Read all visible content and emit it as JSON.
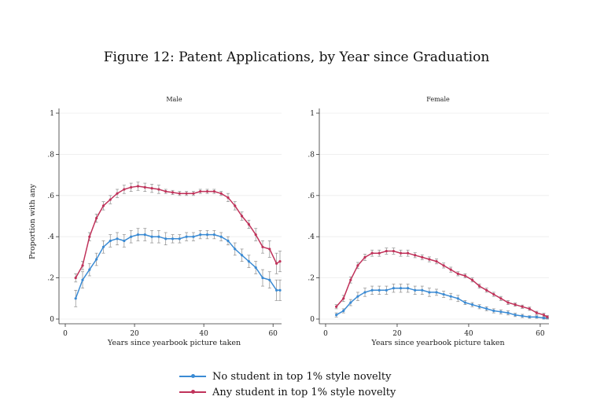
{
  "figure_title": "Figure 12: Patent Applications, by Year since Graduation",
  "colors": {
    "blue": "#3b8bd4",
    "red": "#c0325a",
    "ci": "#8c8c8c",
    "grid": "#ececec",
    "axis": "#333333"
  },
  "legend": {
    "items": [
      {
        "label": "No student in top 1% style novelty",
        "color": "#3b8bd4"
      },
      {
        "label": "Any student in top 1% style novelty",
        "color": "#c0325a"
      }
    ]
  },
  "chart_data": [
    {
      "type": "line",
      "title": "Male",
      "xlabel": "Years since yearbook picture taken",
      "ylabel": "Proportion with any",
      "xlim": [
        0,
        62
      ],
      "ylim": [
        0,
        1
      ],
      "xticks": [
        0,
        20,
        40,
        60
      ],
      "yticks": [
        0,
        0.2,
        0.4,
        0.6,
        0.8,
        1
      ],
      "ytick_labels": [
        "0",
        ".2",
        ".4",
        ".6",
        ".8",
        "1"
      ],
      "grid": true,
      "legend": "bottom",
      "series": [
        {
          "name": "No student in top 1% style novelty",
          "color": "#3b8bd4",
          "error_bars": true,
          "x": [
            3,
            5,
            7,
            9,
            11,
            13,
            15,
            17,
            19,
            21,
            23,
            25,
            27,
            29,
            31,
            33,
            35,
            37,
            39,
            41,
            43,
            45,
            47,
            49,
            51,
            53,
            55,
            57,
            59,
            61,
            62
          ],
          "y": [
            0.1,
            0.19,
            0.24,
            0.29,
            0.35,
            0.38,
            0.39,
            0.38,
            0.4,
            0.41,
            0.41,
            0.4,
            0.4,
            0.39,
            0.39,
            0.39,
            0.4,
            0.4,
            0.41,
            0.41,
            0.41,
            0.4,
            0.38,
            0.34,
            0.31,
            0.28,
            0.25,
            0.2,
            0.19,
            0.14,
            0.14
          ],
          "err": [
            0.04,
            0.04,
            0.03,
            0.03,
            0.03,
            0.03,
            0.03,
            0.03,
            0.03,
            0.03,
            0.03,
            0.03,
            0.03,
            0.03,
            0.02,
            0.02,
            0.02,
            0.02,
            0.02,
            0.02,
            0.02,
            0.02,
            0.02,
            0.03,
            0.03,
            0.03,
            0.03,
            0.04,
            0.04,
            0.05,
            0.05
          ]
        },
        {
          "name": "Any student in top 1% style novelty",
          "color": "#c0325a",
          "error_bars": true,
          "x": [
            3,
            5,
            7,
            9,
            11,
            13,
            15,
            17,
            19,
            21,
            23,
            25,
            27,
            29,
            31,
            33,
            35,
            37,
            39,
            41,
            43,
            45,
            47,
            49,
            51,
            53,
            55,
            57,
            59,
            61,
            62
          ],
          "y": [
            0.2,
            0.26,
            0.4,
            0.49,
            0.55,
            0.58,
            0.61,
            0.63,
            0.64,
            0.645,
            0.64,
            0.635,
            0.63,
            0.62,
            0.615,
            0.61,
            0.61,
            0.61,
            0.62,
            0.62,
            0.62,
            0.61,
            0.59,
            0.55,
            0.5,
            0.46,
            0.41,
            0.35,
            0.34,
            0.27,
            0.28
          ],
          "err": [
            0.02,
            0.02,
            0.02,
            0.02,
            0.02,
            0.02,
            0.02,
            0.02,
            0.02,
            0.02,
            0.02,
            0.02,
            0.02,
            0.01,
            0.01,
            0.01,
            0.01,
            0.01,
            0.01,
            0.01,
            0.01,
            0.01,
            0.02,
            0.02,
            0.02,
            0.02,
            0.03,
            0.03,
            0.04,
            0.05,
            0.05
          ]
        }
      ]
    },
    {
      "type": "line",
      "title": "Female",
      "xlabel": "Years since yearbook picture taken",
      "ylabel": "",
      "xlim": [
        0,
        62
      ],
      "ylim": [
        0,
        1
      ],
      "xticks": [
        0,
        20,
        40,
        60
      ],
      "yticks": [
        0,
        0.2,
        0.4,
        0.6,
        0.8,
        1
      ],
      "ytick_labels": [
        "0",
        ".2",
        ".4",
        ".6",
        ".8",
        "1"
      ],
      "grid": true,
      "legend": "bottom",
      "series": [
        {
          "name": "No student in top 1% style novelty",
          "color": "#3b8bd4",
          "error_bars": true,
          "x": [
            3,
            5,
            7,
            9,
            11,
            13,
            15,
            17,
            19,
            21,
            23,
            25,
            27,
            29,
            31,
            33,
            35,
            37,
            39,
            41,
            43,
            45,
            47,
            49,
            51,
            53,
            55,
            57,
            59,
            61,
            62
          ],
          "y": [
            0.02,
            0.04,
            0.08,
            0.11,
            0.13,
            0.14,
            0.14,
            0.14,
            0.15,
            0.15,
            0.15,
            0.14,
            0.14,
            0.13,
            0.13,
            0.12,
            0.11,
            0.1,
            0.08,
            0.07,
            0.06,
            0.05,
            0.04,
            0.035,
            0.03,
            0.02,
            0.015,
            0.01,
            0.01,
            0.005,
            0.005
          ],
          "err": [
            0.01,
            0.01,
            0.015,
            0.02,
            0.02,
            0.02,
            0.02,
            0.02,
            0.02,
            0.02,
            0.02,
            0.02,
            0.02,
            0.02,
            0.015,
            0.015,
            0.015,
            0.015,
            0.01,
            0.01,
            0.01,
            0.01,
            0.01,
            0.01,
            0.01,
            0.008,
            0.008,
            0.006,
            0.006,
            0.005,
            0.005
          ]
        },
        {
          "name": "Any student in top 1% style novelty",
          "color": "#c0325a",
          "error_bars": true,
          "x": [
            3,
            5,
            7,
            9,
            11,
            13,
            15,
            17,
            19,
            21,
            23,
            25,
            27,
            29,
            31,
            33,
            35,
            37,
            39,
            41,
            43,
            45,
            47,
            49,
            51,
            53,
            55,
            57,
            59,
            61,
            62
          ],
          "y": [
            0.06,
            0.1,
            0.19,
            0.26,
            0.3,
            0.32,
            0.32,
            0.33,
            0.33,
            0.32,
            0.32,
            0.31,
            0.3,
            0.29,
            0.28,
            0.26,
            0.24,
            0.22,
            0.21,
            0.19,
            0.16,
            0.14,
            0.12,
            0.1,
            0.08,
            0.07,
            0.06,
            0.05,
            0.03,
            0.02,
            0.01
          ],
          "err": [
            0.01,
            0.015,
            0.015,
            0.015,
            0.015,
            0.015,
            0.015,
            0.015,
            0.015,
            0.015,
            0.015,
            0.012,
            0.012,
            0.012,
            0.012,
            0.012,
            0.012,
            0.01,
            0.01,
            0.01,
            0.01,
            0.01,
            0.01,
            0.01,
            0.01,
            0.008,
            0.008,
            0.008,
            0.008,
            0.008,
            0.008
          ]
        }
      ]
    }
  ]
}
